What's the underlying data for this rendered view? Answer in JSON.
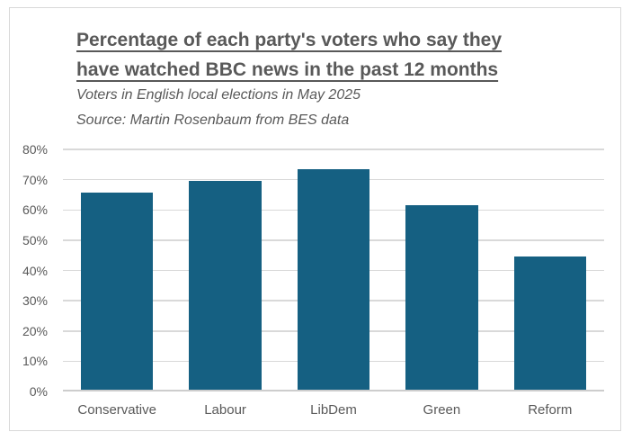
{
  "chart_data": {
    "type": "bar",
    "title": "Percentage of each party's voters who say they have watched BBC news in the past 12 months",
    "title_lines": [
      "Percentage of each party's voters who say they",
      "have watched BBC news in the past 12 months"
    ],
    "subtitle": "Voters in English local elections in May 2025",
    "source": "Source: Martin Rosenbaum from BES data",
    "categories": [
      "Conservative",
      "Labour",
      "LibDem",
      "Green",
      "Reform"
    ],
    "values": [
      65,
      69,
      73,
      61,
      44
    ],
    "xlabel": "",
    "ylabel": "",
    "ylim": [
      0,
      80
    ],
    "ytick_step": 10,
    "ytick_labels": [
      "0%",
      "10%",
      "20%",
      "30%",
      "40%",
      "50%",
      "60%",
      "70%",
      "80%"
    ],
    "grid": true,
    "legend": false,
    "gap_ratio": 0.5
  },
  "colors": {
    "bar": "#156082",
    "gridline": "#d9d9d9",
    "axis_line": "#cdcdcd",
    "text": "#595959",
    "frame_border": "#d9d9d9",
    "background": "#ffffff"
  }
}
